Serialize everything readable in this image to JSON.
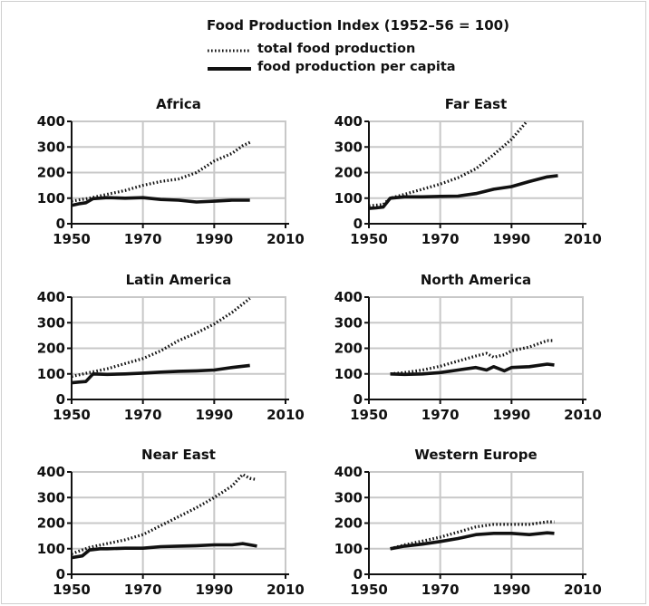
{
  "figure": {
    "title": "Food Production Index (1952–56 = 100)",
    "legend": [
      {
        "label": "total food production",
        "style": "dotted"
      },
      {
        "label": "food production per capita",
        "style": "solid"
      }
    ],
    "colors": {
      "line": "#111111",
      "grid": "#c8c8c8"
    }
  },
  "chart_data": [
    {
      "type": "line",
      "title": "Africa",
      "xlim": [
        1950,
        2010
      ],
      "ylim": [
        0,
        400
      ],
      "xticks": [
        1950,
        1970,
        1990,
        2010
      ],
      "yticks": [
        0,
        100,
        200,
        300,
        400
      ],
      "grid": true,
      "series": [
        {
          "name": "total food production",
          "style": "dotted",
          "x": [
            1950,
            1955,
            1960,
            1965,
            1970,
            1975,
            1980,
            1985,
            1990,
            1995,
            1998,
            2000
          ],
          "y": [
            88,
            100,
            115,
            130,
            150,
            165,
            175,
            200,
            245,
            275,
            305,
            318
          ]
        },
        {
          "name": "food production per capita",
          "style": "solid",
          "x": [
            1950,
            1952,
            1954,
            1956,
            1960,
            1965,
            1970,
            1975,
            1980,
            1985,
            1990,
            1995,
            2000
          ],
          "y": [
            72,
            78,
            82,
            98,
            102,
            100,
            102,
            95,
            92,
            85,
            88,
            92,
            92
          ]
        }
      ]
    },
    {
      "type": "line",
      "title": "Far East",
      "xlim": [
        1950,
        2010
      ],
      "ylim": [
        0,
        400
      ],
      "xticks": [
        1950,
        1970,
        1990,
        2010
      ],
      "yticks": [
        0,
        100,
        200,
        300,
        400
      ],
      "grid": true,
      "series": [
        {
          "name": "total food production",
          "style": "dotted",
          "x": [
            1950,
            1954,
            1956,
            1960,
            1965,
            1970,
            1975,
            1980,
            1985,
            1990,
            1994
          ],
          "y": [
            70,
            75,
            100,
            115,
            135,
            155,
            180,
            215,
            270,
            330,
            395
          ]
        },
        {
          "name": "food production per capita",
          "style": "solid",
          "x": [
            1950,
            1952,
            1954,
            1956,
            1960,
            1965,
            1970,
            1975,
            1980,
            1985,
            1990,
            1995,
            2000,
            2003
          ],
          "y": [
            60,
            62,
            65,
            100,
            105,
            105,
            107,
            108,
            118,
            135,
            145,
            165,
            183,
            188
          ]
        }
      ]
    },
    {
      "type": "line",
      "title": "Latin America",
      "xlim": [
        1950,
        2010
      ],
      "ylim": [
        0,
        400
      ],
      "xticks": [
        1950,
        1970,
        1990,
        2010
      ],
      "yticks": [
        0,
        100,
        200,
        300,
        400
      ],
      "grid": true,
      "series": [
        {
          "name": "total food production",
          "style": "dotted",
          "x": [
            1950,
            1955,
            1960,
            1965,
            1970,
            1975,
            1980,
            1985,
            1990,
            1995,
            2000
          ],
          "y": [
            90,
            105,
            120,
            140,
            160,
            190,
            230,
            260,
            295,
            340,
            395
          ]
        },
        {
          "name": "food production per capita",
          "style": "solid",
          "x": [
            1950,
            1952,
            1954,
            1956,
            1960,
            1965,
            1970,
            1975,
            1980,
            1985,
            1990,
            1995,
            2000
          ],
          "y": [
            65,
            68,
            70,
            100,
            98,
            100,
            103,
            107,
            110,
            112,
            115,
            125,
            133
          ]
        }
      ]
    },
    {
      "type": "line",
      "title": "North America",
      "xlim": [
        1950,
        2010
      ],
      "ylim": [
        0,
        400
      ],
      "xticks": [
        1950,
        1970,
        1990,
        2010
      ],
      "yticks": [
        0,
        100,
        200,
        300,
        400
      ],
      "grid": true,
      "series": [
        {
          "name": "total food production",
          "style": "dotted",
          "x": [
            1956,
            1960,
            1965,
            1970,
            1975,
            1980,
            1983,
            1985,
            1988,
            1990,
            1995,
            2000,
            2002
          ],
          "y": [
            100,
            105,
            115,
            130,
            150,
            170,
            180,
            165,
            175,
            190,
            205,
            230,
            230
          ]
        },
        {
          "name": "food production per capita",
          "style": "solid",
          "x": [
            1956,
            1960,
            1965,
            1970,
            1975,
            1980,
            1983,
            1985,
            1988,
            1990,
            1995,
            2000,
            2002
          ],
          "y": [
            100,
            98,
            100,
            105,
            115,
            125,
            115,
            128,
            112,
            125,
            128,
            138,
            135
          ]
        }
      ]
    },
    {
      "type": "line",
      "title": "Near East",
      "xlim": [
        1950,
        2010
      ],
      "ylim": [
        0,
        400
      ],
      "xticks": [
        1950,
        1970,
        1990,
        2010
      ],
      "yticks": [
        0,
        100,
        200,
        300,
        400
      ],
      "grid": true,
      "series": [
        {
          "name": "total food production",
          "style": "dotted",
          "x": [
            1950,
            1955,
            1960,
            1965,
            1970,
            1975,
            1980,
            1985,
            1990,
            1995,
            1998,
            2000,
            2002
          ],
          "y": [
            80,
            105,
            120,
            135,
            155,
            190,
            225,
            260,
            300,
            345,
            390,
            375,
            370
          ]
        },
        {
          "name": "food production per capita",
          "style": "solid",
          "x": [
            1950,
            1953,
            1955,
            1958,
            1960,
            1965,
            1970,
            1975,
            1980,
            1985,
            1990,
            1995,
            1998,
            2002
          ],
          "y": [
            65,
            72,
            95,
            100,
            100,
            102,
            102,
            108,
            110,
            112,
            115,
            115,
            120,
            110
          ]
        }
      ]
    },
    {
      "type": "line",
      "title": "Western Europe",
      "xlim": [
        1950,
        2010
      ],
      "ylim": [
        0,
        400
      ],
      "xticks": [
        1950,
        1970,
        1990,
        2010
      ],
      "yticks": [
        0,
        100,
        200,
        300,
        400
      ],
      "grid": true,
      "series": [
        {
          "name": "total food production",
          "style": "dotted",
          "x": [
            1956,
            1960,
            1965,
            1970,
            1975,
            1980,
            1985,
            1990,
            1995,
            2000,
            2002
          ],
          "y": [
            100,
            115,
            130,
            145,
            165,
            185,
            195,
            195,
            195,
            205,
            205
          ]
        },
        {
          "name": "food production per capita",
          "style": "solid",
          "x": [
            1956,
            1960,
            1965,
            1970,
            1975,
            1980,
            1985,
            1990,
            1995,
            2000,
            2002
          ],
          "y": [
            100,
            110,
            118,
            128,
            140,
            155,
            160,
            160,
            155,
            162,
            160
          ]
        }
      ]
    }
  ]
}
